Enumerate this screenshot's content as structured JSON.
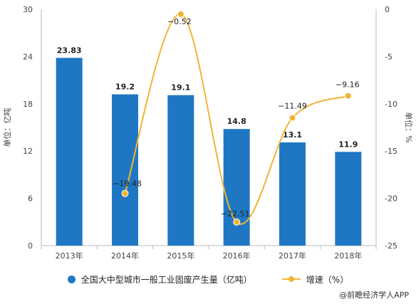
{
  "chart_data": {
    "type": "bar+line",
    "categories": [
      "2013年",
      "2014年",
      "2015年",
      "2016年",
      "2017年",
      "2018年"
    ],
    "series": [
      {
        "name": "全国大中型城市一般工业固废产生量（亿吨）",
        "type": "bar",
        "axis": "left",
        "values": [
          23.83,
          19.2,
          19.1,
          14.8,
          13.1,
          11.9
        ],
        "labels": [
          "23.83",
          "19.2",
          "19.1",
          "14.8",
          "13.1",
          "11.9"
        ],
        "color": "#1f77c4"
      },
      {
        "name": "增速（%）",
        "type": "line",
        "axis": "right",
        "values": [
          null,
          -19.48,
          -0.52,
          -22.51,
          -11.49,
          -9.16
        ],
        "labels": [
          "",
          "−19.48",
          "−0.52",
          "−22.51",
          "−11.49",
          "−9.16"
        ],
        "color": "#f0b533"
      }
    ],
    "ylabel_left": "单位：亿吨",
    "ylabel_right": "单位：%",
    "ylim_left": [
      0,
      30
    ],
    "yticks_left": [
      "0",
      "6",
      "12",
      "18",
      "24",
      "30"
    ],
    "ylim_right": [
      -25,
      0
    ],
    "yticks_right": [
      "-25",
      "-20",
      "-15",
      "-10",
      "-5",
      "0"
    ],
    "grid": false,
    "legend_position": "bottom"
  },
  "legend": {
    "bar_label": "全国大中型城市一般工业固废产生量（亿吨）",
    "line_label": "增速（%）"
  },
  "source": "@前瞻经济学人APP"
}
